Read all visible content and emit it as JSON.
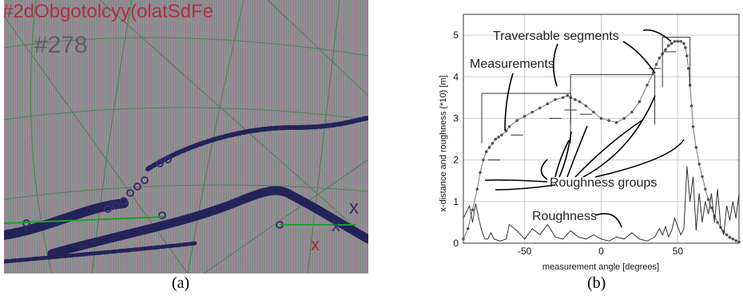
{
  "panel_a": {
    "overlay_text": "#2dObgotolcyy(olatSdFe",
    "id_label": "#278",
    "colors": {
      "background": "#8d8a8f",
      "grid": "#2f7a3a",
      "text": "#b0243a",
      "track": "#23235a",
      "marker": "#3a2f6e",
      "green_line": "#19a02a"
    },
    "markers": [
      "x",
      "x",
      "x"
    ]
  },
  "panel_b": {
    "chart_data": {
      "type": "line",
      "ylabel": "x-distance and roughness (*10) [m]",
      "xlabel": "measurement angle [degrees]",
      "xlim": [
        -90,
        90
      ],
      "ylim": [
        0,
        5.5
      ],
      "x_ticks": [
        -50,
        0,
        50
      ],
      "y_ticks": [
        0,
        1,
        2,
        3,
        4,
        5
      ],
      "series": [
        {
          "x": [
            -90,
            -87,
            -84,
            -81,
            -79,
            -77,
            -75,
            -73,
            -71,
            -69,
            -67,
            -65,
            -62,
            -60,
            -55,
            -50,
            -45,
            -40,
            -35,
            -30,
            -25,
            -22,
            -20,
            -17,
            -14,
            -10,
            -5,
            0,
            5,
            10,
            15,
            20,
            25,
            30,
            34,
            36,
            38,
            40,
            42,
            44,
            46,
            48,
            50,
            52,
            54,
            55,
            56,
            57,
            58,
            59,
            60,
            62,
            64,
            66,
            68,
            70,
            72,
            74,
            76,
            78,
            80,
            82,
            84,
            86,
            88,
            90
          ],
          "values": [
            0.1,
            0.35,
            0.8,
            1.3,
            1.7,
            2.0,
            2.2,
            2.3,
            2.4,
            2.5,
            2.55,
            2.6,
            2.7,
            2.8,
            2.95,
            3.05,
            3.15,
            3.25,
            3.35,
            3.45,
            3.5,
            3.55,
            3.5,
            3.45,
            3.4,
            3.3,
            3.15,
            3.0,
            2.95,
            2.9,
            3.0,
            3.15,
            3.4,
            3.8,
            4.1,
            4.3,
            4.45,
            4.55,
            4.65,
            4.75,
            4.8,
            4.85,
            4.85,
            4.85,
            4.8,
            4.7,
            4.5,
            4.2,
            3.8,
            3.3,
            2.8,
            2.3,
            1.9,
            1.6,
            1.3,
            1.05,
            0.85,
            0.65,
            0.5,
            0.38,
            0.28,
            0.2,
            0.14,
            0.1,
            0.06,
            0.03
          ]
        },
        {
          "name": "Roughness",
          "x": [
            -90,
            -86,
            -84,
            -82,
            -80,
            -78,
            -76,
            -74,
            -72,
            -70,
            -66,
            -62,
            -60,
            -55,
            -50,
            -45,
            -40,
            -35,
            -30,
            -25,
            -20,
            -15,
            -10,
            -5,
            0,
            5,
            10,
            15,
            20,
            25,
            30,
            35,
            38,
            40,
            42,
            44,
            46,
            48,
            50,
            52,
            54,
            56,
            58,
            60,
            62,
            64,
            66,
            68,
            70,
            72,
            74,
            76,
            78,
            80,
            82,
            84,
            86,
            88,
            90
          ],
          "values": [
            0.6,
            0.9,
            0.5,
            0.95,
            0.6,
            0.3,
            0.1,
            0.1,
            0.25,
            0.1,
            0.05,
            0.1,
            0.45,
            0.3,
            0.1,
            0.35,
            0.2,
            0.45,
            0.15,
            0.1,
            0.3,
            0.15,
            0.1,
            0.2,
            0.1,
            0.05,
            0.15,
            0.1,
            0.25,
            0.1,
            0.05,
            0.15,
            0.35,
            0.2,
            0.4,
            0.15,
            0.3,
            0.6,
            0.4,
            0.2,
            0.35,
            1.85,
            1.0,
            1.6,
            0.3,
            1.2,
            0.5,
            1.0,
            0.7,
            1.2,
            0.5,
            1.3,
            0.4,
            0.2,
            0.9,
            0.55,
            1.0,
            0.6,
            1.2
          ]
        }
      ],
      "annotations": {
        "traversable": "Traversable segments",
        "measurements": "Measurements",
        "roughness_groups": "Roughness groups",
        "roughness": "Roughness"
      }
    }
  },
  "captions": {
    "a": "(a)",
    "b": "(b)"
  }
}
